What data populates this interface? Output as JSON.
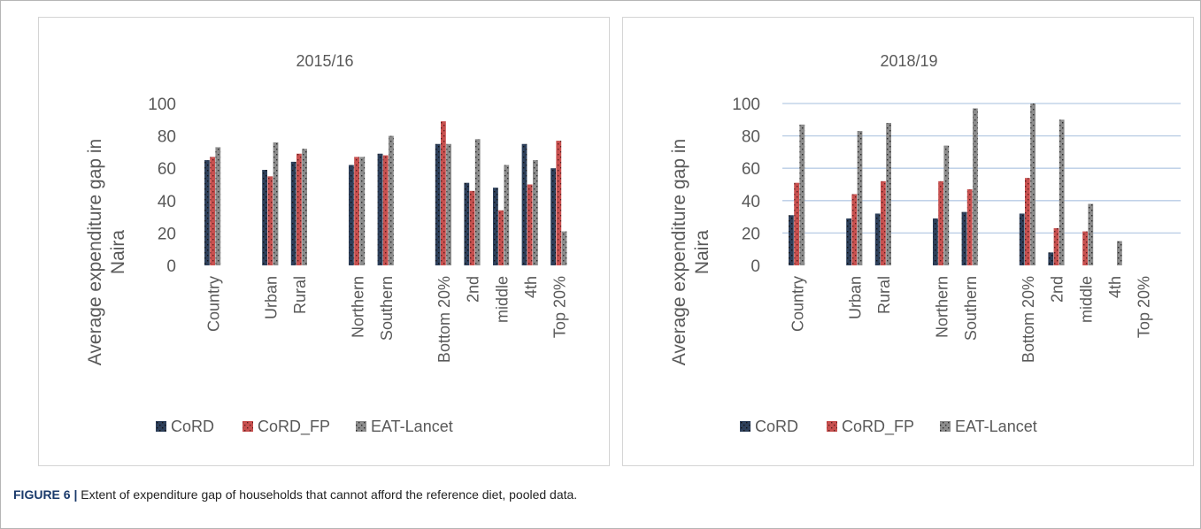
{
  "caption": {
    "label": "FIGURE 6 |",
    "text": "Extent of expenditure gap of households that cannot afford the reference diet, pooled data."
  },
  "colors": {
    "CoRD": "#2d3f5a",
    "CoRD_FP": "#c8504f",
    "EAT-Lancet": "#8c8c8c",
    "grid": "#b8cce4"
  },
  "chart_data": [
    {
      "type": "bar",
      "title": "2015/16",
      "ylabel": "Average expenditure gap in Naira",
      "ylim": [
        0,
        100
      ],
      "yticks": [
        0,
        20,
        40,
        60,
        80,
        100
      ],
      "grid": false,
      "legend": "bottom",
      "categories": [
        "Country",
        "Urban",
        "Rural",
        "Northern",
        "Southern",
        "Bottom 20%",
        "2nd",
        "middle",
        "4th",
        "Top 20%"
      ],
      "series": [
        {
          "name": "CoRD",
          "values": [
            65,
            59,
            64,
            62,
            69,
            75,
            51,
            48,
            75,
            60
          ]
        },
        {
          "name": "CoRD_FP",
          "values": [
            67,
            55,
            69,
            67,
            68,
            89,
            46,
            34,
            50,
            77
          ]
        },
        {
          "name": "EAT-Lancet",
          "values": [
            73,
            76,
            72,
            67,
            80,
            75,
            78,
            62,
            65,
            21
          ]
        }
      ]
    },
    {
      "type": "bar",
      "title": "2018/19",
      "ylabel": "Average expenditure gap in Naira",
      "ylim": [
        0,
        100
      ],
      "yticks": [
        0,
        20,
        40,
        60,
        80,
        100
      ],
      "grid": true,
      "legend": "bottom",
      "categories": [
        "Country",
        "Urban",
        "Rural",
        "Northern",
        "Southern",
        "Bottom 20%",
        "2nd",
        "middle",
        "4th",
        "Top 20%"
      ],
      "series": [
        {
          "name": "CoRD",
          "values": [
            31,
            29,
            32,
            29,
            33,
            32,
            8,
            0,
            0,
            0
          ]
        },
        {
          "name": "CoRD_FP",
          "values": [
            51,
            44,
            52,
            52,
            47,
            54,
            23,
            21,
            0,
            0
          ]
        },
        {
          "name": "EAT-Lancet",
          "values": [
            87,
            83,
            88,
            74,
            97,
            100,
            90,
            38,
            15,
            0
          ]
        }
      ]
    }
  ]
}
